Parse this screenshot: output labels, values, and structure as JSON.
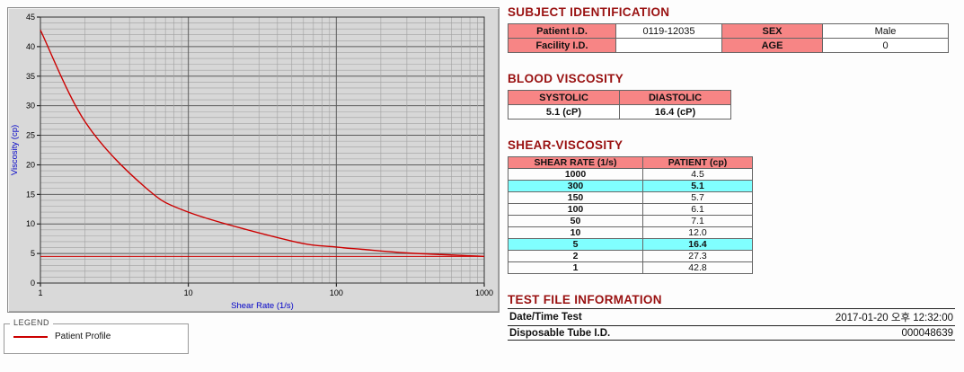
{
  "chart": {
    "legend_title": "LEGEND",
    "series_label": "Patient Profile"
  },
  "chart_data": {
    "type": "line",
    "x_scale": "log",
    "x": [
      1,
      2,
      5,
      10,
      50,
      100,
      150,
      300,
      1000
    ],
    "series": [
      {
        "name": "Patient Profile",
        "values": [
          42.8,
          27.3,
          16.4,
          12.0,
          7.1,
          6.1,
          5.7,
          5.1,
          4.5
        ]
      }
    ],
    "reference_line": 4.5,
    "title": "",
    "xlabel": "Shear Rate (1/s)",
    "ylabel": "Viscosity (cp)",
    "xlim": [
      1,
      1000
    ],
    "ylim": [
      0,
      45
    ],
    "x_ticks": [
      1,
      10,
      100,
      1000
    ],
    "y_ticks": [
      0,
      5,
      10,
      15,
      20,
      25,
      30,
      35,
      40,
      45
    ],
    "grid": true,
    "legend_position": "bottom-left",
    "line_color": "#cc0000"
  },
  "subject": {
    "title": "SUBJECT IDENTIFICATION",
    "rows": [
      {
        "label1": "Patient I.D.",
        "value1": "0119-12035",
        "label2": "SEX",
        "value2": "Male"
      },
      {
        "label1": "Facility I.D.",
        "value1": "",
        "label2": "AGE",
        "value2": "0"
      }
    ]
  },
  "blood": {
    "title": "BLOOD VISCOSITY",
    "headers": [
      "SYSTOLIC",
      "DIASTOLIC"
    ],
    "values": [
      "5.1 (cP)",
      "16.4 (cP)"
    ]
  },
  "shear": {
    "title": "SHEAR-VISCOSITY",
    "headers": [
      "SHEAR RATE (1/s)",
      "PATIENT (cp)"
    ],
    "rows": [
      {
        "rate": "1000",
        "value": "4.5",
        "highlight": false
      },
      {
        "rate": "300",
        "value": "5.1",
        "highlight": true
      },
      {
        "rate": "150",
        "value": "5.7",
        "highlight": false
      },
      {
        "rate": "100",
        "value": "6.1",
        "highlight": false
      },
      {
        "rate": "50",
        "value": "7.1",
        "highlight": false
      },
      {
        "rate": "10",
        "value": "12.0",
        "highlight": false
      },
      {
        "rate": "5",
        "value": "16.4",
        "highlight": true
      },
      {
        "rate": "2",
        "value": "27.3",
        "highlight": false
      },
      {
        "rate": "1",
        "value": "42.8",
        "highlight": false
      }
    ]
  },
  "testfile": {
    "title": "TEST FILE INFORMATION",
    "rows": [
      {
        "label": "Date/Time Test",
        "value": "2017-01-20 오후 12:32:00"
      },
      {
        "label": "Disposable Tube I.D.",
        "value": "000048639"
      }
    ]
  }
}
